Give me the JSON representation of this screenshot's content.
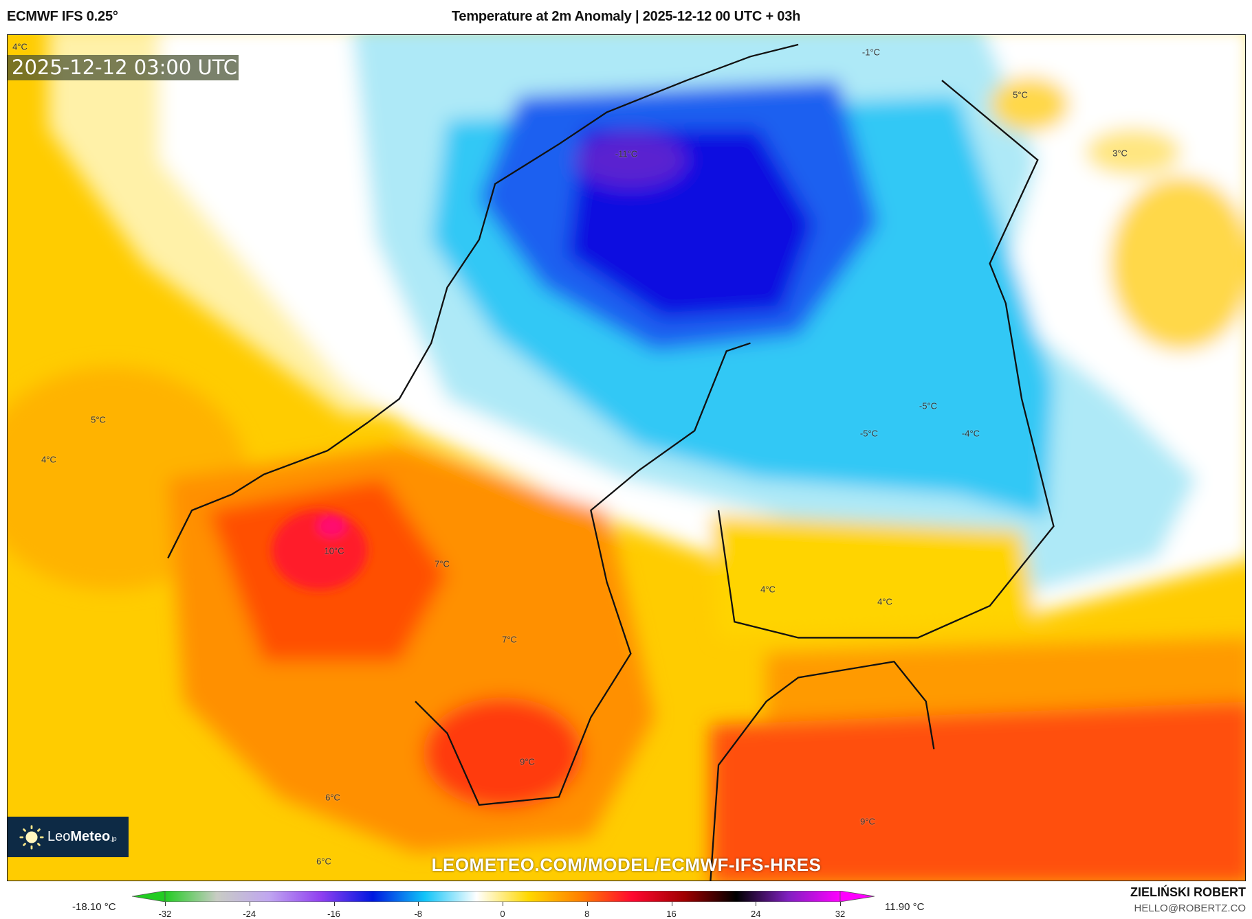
{
  "header": {
    "model": "ECMWF IFS 0.25°",
    "title": "Temperature at 2m Anomaly | 2025-12-12 00 UTC + 03h"
  },
  "map": {
    "valid_time": "2025-12-12 03:00 UTC",
    "watermark_url": "LEOMETEO.COM/MODEL/ECMWF-IFS-HRES",
    "logo": {
      "brand_light": "Leo",
      "brand_bold": "Meteo",
      "suffix": ".jp"
    },
    "labels": [
      "4°C",
      "-1°C",
      "-11°C",
      "5°C",
      "3°C",
      "5°C",
      "4°C",
      "-5°C",
      "-5°C",
      "-4°C",
      "10°C",
      "7°C",
      "4°C",
      "4°C",
      "7°C",
      "9°C",
      "6°C",
      "9°C",
      "6°C"
    ]
  },
  "colorbar": {
    "min_label": "-18.10 °C",
    "max_label": "11.90 °C",
    "ticks": [
      "-32",
      "-24",
      "-16",
      "-8",
      "0",
      "8",
      "16",
      "24",
      "32"
    ],
    "colors": [
      "#22cc22",
      "#c8ccc4",
      "#c0a6f0",
      "#9040f0",
      "#0018e0",
      "#10c4f8",
      "#ffffff",
      "#ffd800",
      "#ff8000",
      "#ff0830",
      "#a00000",
      "#000000",
      "#8020c0",
      "#ff00ff"
    ]
  },
  "credit": {
    "author": "ZIELIŃSKI ROBERT",
    "email": "HELLO@ROBERTZ.CO"
  }
}
